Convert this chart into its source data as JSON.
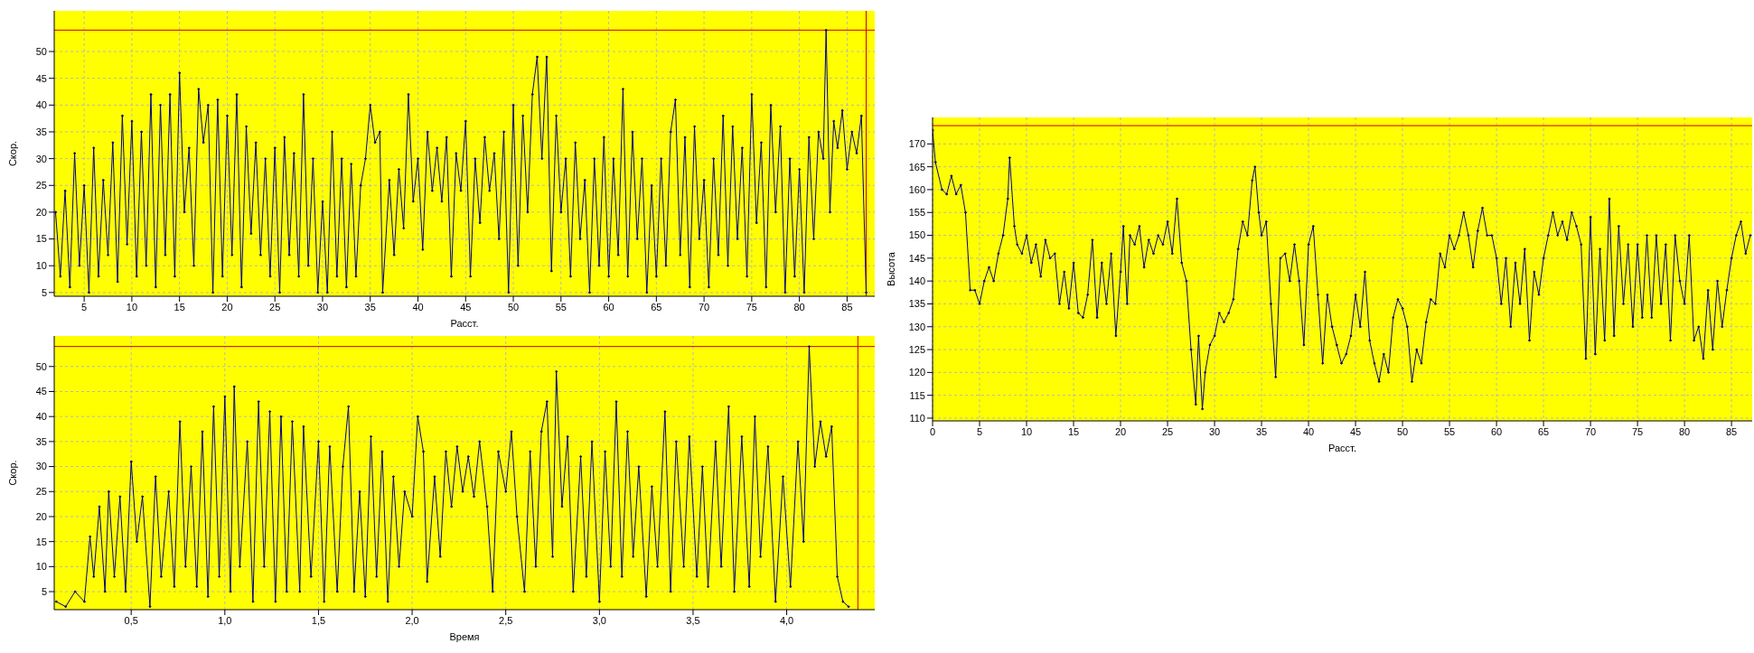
{
  "chart_data": [
    {
      "type": "line",
      "xlabel": "Расст.",
      "ylabel": "Скор.",
      "xlim": [
        1.86,
        87.9
      ],
      "ylim": [
        4.3,
        57.6
      ],
      "xticks": [
        5,
        10,
        15,
        20,
        25,
        30,
        35,
        40,
        45,
        50,
        55,
        60,
        65,
        70,
        75,
        80,
        85
      ],
      "yticks": [
        5,
        10,
        15,
        20,
        25,
        30,
        35,
        40,
        45,
        50
      ],
      "grid": true,
      "legend": false,
      "marker": "circle",
      "line_style": "solid",
      "ref_lines": [
        {
          "axis": "y",
          "value": 54,
          "color": "#cc0000"
        },
        {
          "axis": "x",
          "value": 87,
          "color": "#cc0000"
        }
      ],
      "series": [
        {
          "color": "#000080",
          "x": [
            2.0,
            2.5,
            3.0,
            3.5,
            4.0,
            4.5,
            5.0,
            5.5,
            6.0,
            6.5,
            7.0,
            7.5,
            8.0,
            8.5,
            9.0,
            9.5,
            10.0,
            10.5,
            11.0,
            11.5,
            12.0,
            12.5,
            13.0,
            13.5,
            14.0,
            14.5,
            15.0,
            15.5,
            16.0,
            16.5,
            17.0,
            17.5,
            18.0,
            18.5,
            19.0,
            19.5,
            20.0,
            20.5,
            21.0,
            21.5,
            22.0,
            22.5,
            23.0,
            23.5,
            24.0,
            24.5,
            25.0,
            25.5,
            26.0,
            26.5,
            27.0,
            27.5,
            28.0,
            28.5,
            29.0,
            29.5,
            30.0,
            30.5,
            31.0,
            31.5,
            32.0,
            32.5,
            33.0,
            33.5,
            34.0,
            34.5,
            35.0,
            35.5,
            36.0,
            36.3,
            37.0,
            37.5,
            38.0,
            38.5,
            39.0,
            39.5,
            40.0,
            40.5,
            41.0,
            41.5,
            42.0,
            42.5,
            43.0,
            43.5,
            44.0,
            44.5,
            45.0,
            45.5,
            46.0,
            46.5,
            47.0,
            47.5,
            48.0,
            48.5,
            49.0,
            49.5,
            50.0,
            50.5,
            51.0,
            51.5,
            52.0,
            52.5,
            53.0,
            53.5,
            54.0,
            54.5,
            55.0,
            55.5,
            56.0,
            56.5,
            57.0,
            57.5,
            58.0,
            58.5,
            59.0,
            59.5,
            60.0,
            60.5,
            61.0,
            61.5,
            62.0,
            62.5,
            63.0,
            63.5,
            64.0,
            64.5,
            65.0,
            65.5,
            66.0,
            66.5,
            67.0,
            67.5,
            68.0,
            68.5,
            69.0,
            69.5,
            70.0,
            70.5,
            71.0,
            71.5,
            72.0,
            72.5,
            73.0,
            73.5,
            74.0,
            74.5,
            75.0,
            75.5,
            76.0,
            76.5,
            77.0,
            77.5,
            78.0,
            78.5,
            79.0,
            79.5,
            80.0,
            80.5,
            81.0,
            81.5,
            82.0,
            82.5,
            82.8,
            83.2,
            83.6,
            84.0,
            84.5,
            85.0,
            85.5,
            86.0,
            86.5,
            87.0
          ],
          "values": [
            20,
            8,
            24,
            6,
            31,
            10,
            25,
            5,
            32,
            8,
            26,
            12,
            33,
            7,
            38,
            14,
            37,
            8,
            35,
            10,
            42,
            6,
            40,
            12,
            42,
            8,
            46,
            20,
            32,
            10,
            43,
            33,
            40,
            5,
            41,
            8,
            38,
            12,
            42,
            6,
            36,
            16,
            33,
            12,
            30,
            8,
            32,
            5,
            34,
            12,
            31,
            8,
            42,
            10,
            30,
            5,
            22,
            5,
            35,
            8,
            30,
            6,
            29,
            8,
            25,
            30,
            40,
            33,
            35,
            5,
            26,
            12,
            28,
            17,
            42,
            22,
            30,
            13,
            35,
            24,
            32,
            22,
            34,
            8,
            31,
            24,
            37,
            8,
            30,
            18,
            34,
            24,
            31,
            15,
            35,
            5,
            40,
            10,
            38,
            20,
            42,
            49,
            30,
            49,
            9,
            38,
            20,
            30,
            8,
            33,
            15,
            26,
            5,
            30,
            10,
            34,
            8,
            30,
            12,
            43,
            8,
            35,
            15,
            30,
            5,
            25,
            8,
            30,
            10,
            35,
            41,
            12,
            34,
            6,
            36,
            15,
            26,
            6,
            30,
            12,
            38,
            10,
            36,
            15,
            32,
            8,
            42,
            18,
            33,
            6,
            40,
            20,
            36,
            5,
            30,
            8,
            28,
            5,
            34,
            15,
            35,
            30,
            54,
            20,
            37,
            32,
            39,
            28,
            35,
            31,
            38,
            5
          ]
        }
      ]
    },
    {
      "type": "line",
      "xlabel": "Время",
      "ylabel": "Скор.",
      "xlim": [
        0.089,
        4.47
      ],
      "ylim": [
        1.4,
        56.1
      ],
      "xticks": [
        {
          "value": 0.5,
          "label": "0,5"
        },
        {
          "value": 1,
          "label": "1,0"
        },
        {
          "value": 1.5,
          "label": "1,5"
        },
        {
          "value": 2,
          "label": "2,0"
        },
        {
          "value": 2.5,
          "label": "2,5"
        },
        {
          "value": 3,
          "label": "3,0"
        },
        {
          "value": 3.5,
          "label": "3,5"
        },
        {
          "value": 4,
          "label": "4,0"
        }
      ],
      "yticks": [
        5,
        10,
        15,
        20,
        25,
        30,
        35,
        40,
        45,
        50
      ],
      "grid": true,
      "legend": false,
      "marker": "circle",
      "line_style": "solid",
      "ref_lines": [
        {
          "axis": "y",
          "value": 54,
          "color": "#cc0000"
        },
        {
          "axis": "x",
          "value": 4.38,
          "color": "#cc0000"
        }
      ],
      "series": [
        {
          "color": "#000080",
          "x": [
            0.1,
            0.15,
            0.2,
            0.25,
            0.28,
            0.3,
            0.33,
            0.36,
            0.38,
            0.41,
            0.44,
            0.47,
            0.5,
            0.53,
            0.56,
            0.6,
            0.63,
            0.66,
            0.7,
            0.73,
            0.76,
            0.79,
            0.82,
            0.85,
            0.88,
            0.91,
            0.94,
            0.97,
            1.0,
            1.03,
            1.05,
            1.08,
            1.12,
            1.15,
            1.18,
            1.21,
            1.24,
            1.27,
            1.3,
            1.33,
            1.36,
            1.4,
            1.42,
            1.46,
            1.5,
            1.53,
            1.56,
            1.6,
            1.63,
            1.66,
            1.69,
            1.72,
            1.75,
            1.78,
            1.81,
            1.84,
            1.87,
            1.9,
            1.93,
            1.96,
            2.0,
            2.03,
            2.06,
            2.08,
            2.12,
            2.15,
            2.18,
            2.21,
            2.24,
            2.27,
            2.3,
            2.33,
            2.36,
            2.4,
            2.43,
            2.46,
            2.5,
            2.53,
            2.56,
            2.6,
            2.63,
            2.66,
            2.69,
            2.72,
            2.75,
            2.77,
            2.8,
            2.83,
            2.86,
            2.9,
            2.93,
            2.96,
            3.0,
            3.03,
            3.06,
            3.09,
            3.12,
            3.15,
            3.18,
            3.21,
            3.25,
            3.28,
            3.31,
            3.35,
            3.38,
            3.41,
            3.45,
            3.48,
            3.52,
            3.55,
            3.58,
            3.62,
            3.65,
            3.69,
            3.72,
            3.76,
            3.8,
            3.83,
            3.86,
            3.9,
            3.94,
            3.98,
            4.02,
            4.06,
            4.09,
            4.12,
            4.15,
            4.18,
            4.21,
            4.24,
            4.27,
            4.3,
            4.33
          ],
          "values": [
            3,
            2,
            5,
            3,
            16,
            8,
            22,
            5,
            25,
            8,
            24,
            5,
            31,
            15,
            24,
            2,
            28,
            8,
            25,
            6,
            39,
            10,
            30,
            6,
            37,
            4,
            42,
            8,
            44,
            5,
            46,
            10,
            35,
            3,
            43,
            10,
            41,
            3,
            40,
            5,
            39,
            5,
            38,
            8,
            35,
            3,
            34,
            5,
            30,
            42,
            5,
            25,
            4,
            36,
            8,
            33,
            3,
            28,
            10,
            25,
            20,
            40,
            33,
            7,
            28,
            12,
            33,
            22,
            34,
            25,
            32,
            24,
            35,
            22,
            5,
            33,
            25,
            37,
            20,
            5,
            33,
            10,
            37,
            43,
            12,
            49,
            22,
            36,
            5,
            32,
            8,
            35,
            3,
            33,
            10,
            43,
            8,
            37,
            12,
            30,
            4,
            26,
            10,
            41,
            5,
            35,
            10,
            36,
            8,
            30,
            6,
            35,
            10,
            42,
            5,
            36,
            6,
            40,
            12,
            34,
            3,
            28,
            6,
            35,
            15,
            54,
            30,
            39,
            32,
            38,
            8,
            3,
            2
          ]
        }
      ]
    },
    {
      "type": "line",
      "xlabel": "Расст.",
      "ylabel": "Высота",
      "xlim": [
        0,
        87.2
      ],
      "ylim": [
        109.4,
        175.8
      ],
      "xticks": [
        0,
        5,
        10,
        15,
        20,
        25,
        30,
        35,
        40,
        45,
        50,
        55,
        60,
        65,
        70,
        75,
        80,
        85
      ],
      "yticks": [
        110,
        115,
        120,
        125,
        130,
        135,
        140,
        145,
        150,
        155,
        160,
        165,
        170
      ],
      "grid": true,
      "legend": false,
      "marker": "circle",
      "line_style": "solid",
      "ref_lines": [
        {
          "axis": "y",
          "value": 174,
          "color": "#cc0000"
        }
      ],
      "series": [
        {
          "color": "#000080",
          "x": [
            0,
            0.3,
            1,
            1.5,
            2,
            2.5,
            3,
            3.5,
            4,
            4.5,
            5,
            5.5,
            6,
            6.5,
            7,
            7.5,
            8,
            8.2,
            8.7,
            9,
            9.5,
            10,
            10.5,
            11,
            11.5,
            12,
            12.5,
            13,
            13.5,
            14,
            14.5,
            15,
            15.5,
            16,
            16.5,
            17,
            17.5,
            18,
            18.5,
            19,
            19.5,
            20,
            20.3,
            20.7,
            21,
            21.5,
            22,
            22.5,
            23,
            23.5,
            24,
            24.5,
            25,
            25.5,
            26,
            26.5,
            27,
            27.5,
            28,
            28.3,
            28.7,
            29,
            29.5,
            30,
            30.5,
            31,
            31.5,
            32,
            32.5,
            33,
            33.5,
            34,
            34.3,
            34.7,
            35,
            35.5,
            36,
            36.5,
            37,
            37.5,
            38,
            38.5,
            39,
            39.5,
            40,
            40.5,
            41,
            41.5,
            42,
            42.5,
            43,
            43.5,
            44,
            44.5,
            45,
            45.5,
            46,
            46.5,
            47,
            47.5,
            48,
            48.5,
            49,
            49.5,
            50,
            50.5,
            51,
            51.5,
            52,
            52.5,
            53,
            53.5,
            54,
            54.5,
            55,
            55.5,
            56,
            56.5,
            57,
            57.5,
            58,
            58.5,
            59,
            59.5,
            60,
            60.5,
            61,
            61.5,
            62,
            62.5,
            63,
            63.5,
            64,
            64.5,
            65,
            65.5,
            66,
            66.5,
            67,
            67.5,
            68,
            68.5,
            69,
            69.5,
            70,
            70.5,
            71,
            71.5,
            72,
            72.5,
            73,
            73.5,
            74,
            74.5,
            75,
            75.5,
            76,
            76.5,
            77,
            77.5,
            78,
            78.5,
            79,
            79.5,
            80,
            80.5,
            81,
            81.5,
            82,
            82.5,
            83,
            83.5,
            84,
            84.5,
            85,
            85.5,
            86,
            86.5,
            87
          ],
          "values": [
            173,
            166,
            160,
            159,
            163,
            159,
            161,
            155,
            138,
            138,
            135,
            140,
            143,
            140,
            146,
            150,
            158,
            167,
            152,
            148,
            146,
            150,
            144,
            148,
            141,
            149,
            145,
            146,
            135,
            142,
            134,
            144,
            133,
            132,
            137,
            149,
            132,
            144,
            135,
            146,
            128,
            142,
            152,
            135,
            150,
            148,
            152,
            143,
            149,
            146,
            150,
            148,
            153,
            146,
            158,
            144,
            140,
            125,
            113,
            128,
            112,
            120,
            126,
            128,
            133,
            131,
            133,
            136,
            147,
            153,
            150,
            162,
            165,
            155,
            150,
            153,
            135,
            119,
            145,
            146,
            140,
            148,
            140,
            126,
            148,
            152,
            137,
            122,
            137,
            130,
            126,
            122,
            124,
            128,
            137,
            130,
            142,
            127,
            122,
            118,
            124,
            120,
            132,
            136,
            134,
            130,
            118,
            125,
            122,
            131,
            136,
            135,
            146,
            143,
            150,
            147,
            150,
            155,
            150,
            143,
            151,
            156,
            150,
            150,
            145,
            135,
            145,
            130,
            144,
            135,
            147,
            127,
            142,
            137,
            145,
            150,
            155,
            150,
            153,
            149,
            155,
            152,
            148,
            123,
            154,
            124,
            147,
            127,
            158,
            128,
            152,
            135,
            148,
            130,
            148,
            132,
            150,
            132,
            150,
            135,
            148,
            127,
            150,
            140,
            135,
            150,
            127,
            130,
            123,
            138,
            125,
            140,
            130,
            138,
            145,
            150,
            153,
            146,
            150
          ]
        }
      ]
    }
  ]
}
